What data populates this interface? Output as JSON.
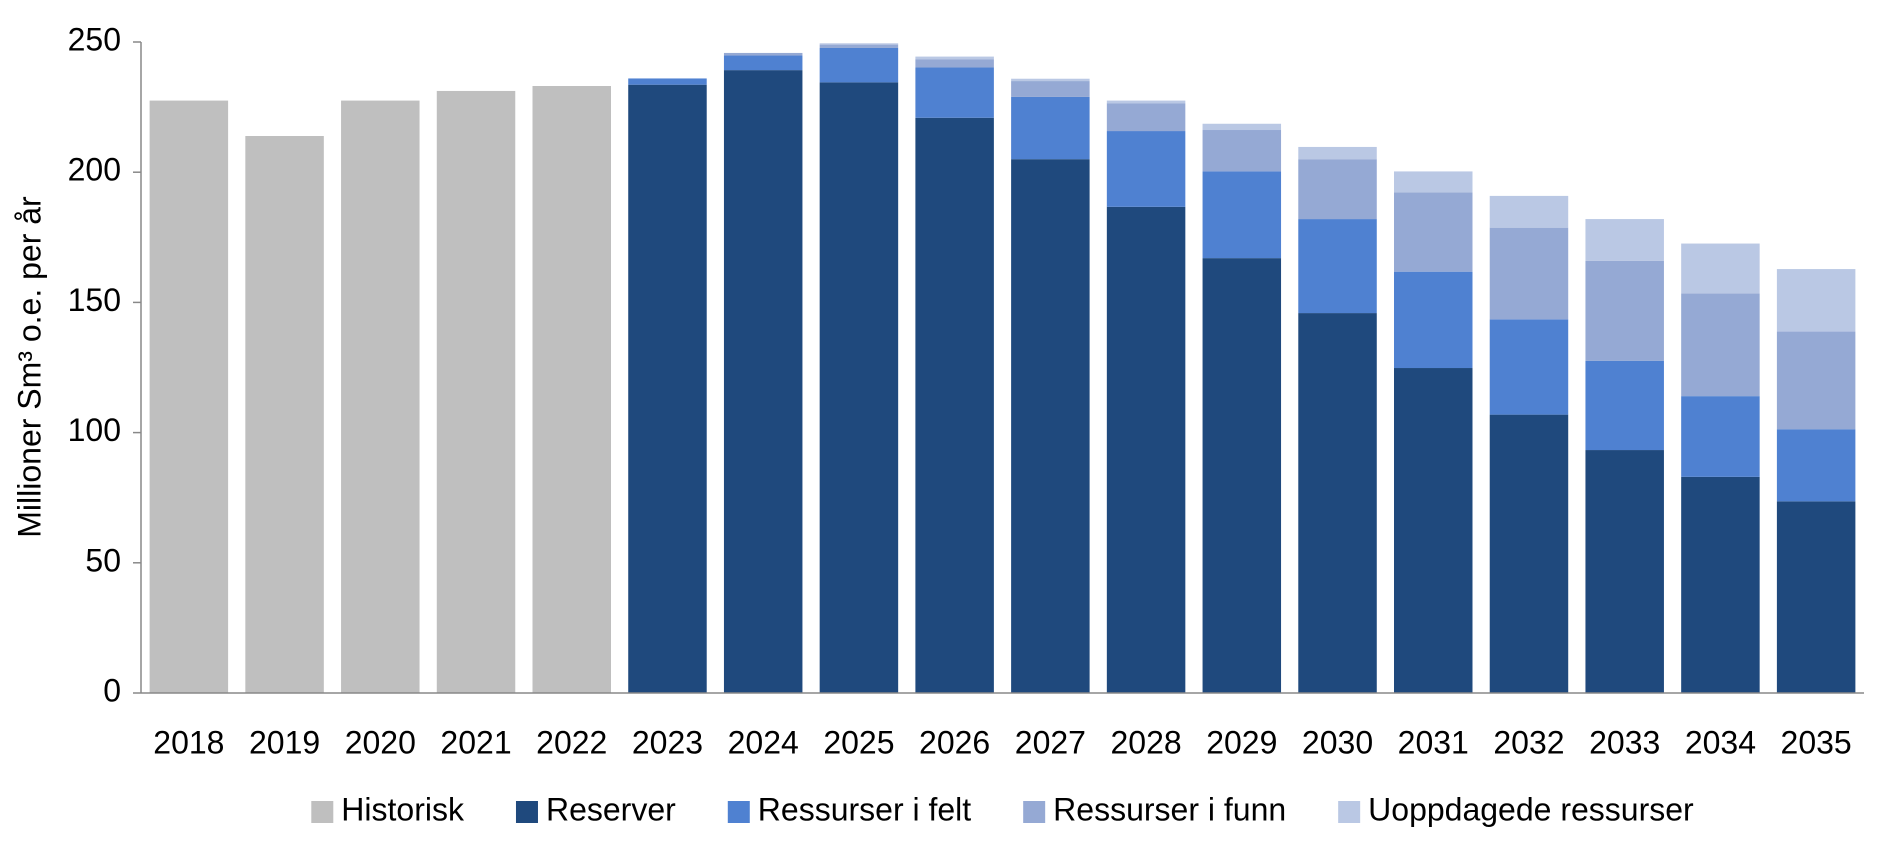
{
  "chart_data": {
    "type": "stacked-bar",
    "y_label": "Millioner Sm³ o.e. per år",
    "categories": [
      "2018",
      "2019",
      "2020",
      "2021",
      "2022",
      "2023",
      "2024",
      "2025",
      "2026",
      "2027",
      "2028",
      "2029",
      "2030",
      "2031",
      "2032",
      "2033",
      "2034",
      "2035"
    ],
    "series": [
      {
        "name": "Historisk",
        "color": "#bfbfbf",
        "values": [
          227.5,
          213.9,
          227.5,
          231.2,
          233.1,
          null,
          null,
          null,
          null,
          null,
          null,
          null,
          null,
          null,
          null,
          null,
          null,
          null
        ]
      },
      {
        "name": "Reserver",
        "color": "#1f497d",
        "values": [
          null,
          null,
          null,
          null,
          null,
          233.6,
          239.2,
          234.5,
          220.9,
          205,
          186.7,
          167,
          145.9,
          124.8,
          106.9,
          93.3,
          83,
          73.6
        ]
      },
      {
        "name": "Ressurser i felt",
        "color": "#4f81d1",
        "values": [
          null,
          null,
          null,
          null,
          null,
          2.4,
          5.6,
          13.2,
          19.3,
          23.9,
          29.1,
          33.3,
          36.1,
          37,
          36.6,
          34.3,
          31,
          27.7
        ]
      },
      {
        "name": "Ressurser i funn",
        "color": "#95a9d4",
        "values": [
          null,
          null,
          null,
          null,
          null,
          0,
          1,
          1.3,
          3.2,
          6.1,
          10.7,
          15.9,
          23,
          30.5,
          35.2,
          38.4,
          39.4,
          37.5
        ]
      },
      {
        "name": "Uoppdagede ressurser",
        "color": "#bac8e4",
        "values": [
          null,
          null,
          null,
          null,
          null,
          0,
          0,
          0.5,
          1,
          0.9,
          1,
          2.4,
          4.7,
          8,
          12.2,
          16,
          19.2,
          24
        ]
      }
    ],
    "ylim": [
      0,
      250
    ],
    "yticks": [
      0,
      50,
      100,
      150,
      200,
      250
    ],
    "grid": false,
    "legend": "bottom"
  }
}
